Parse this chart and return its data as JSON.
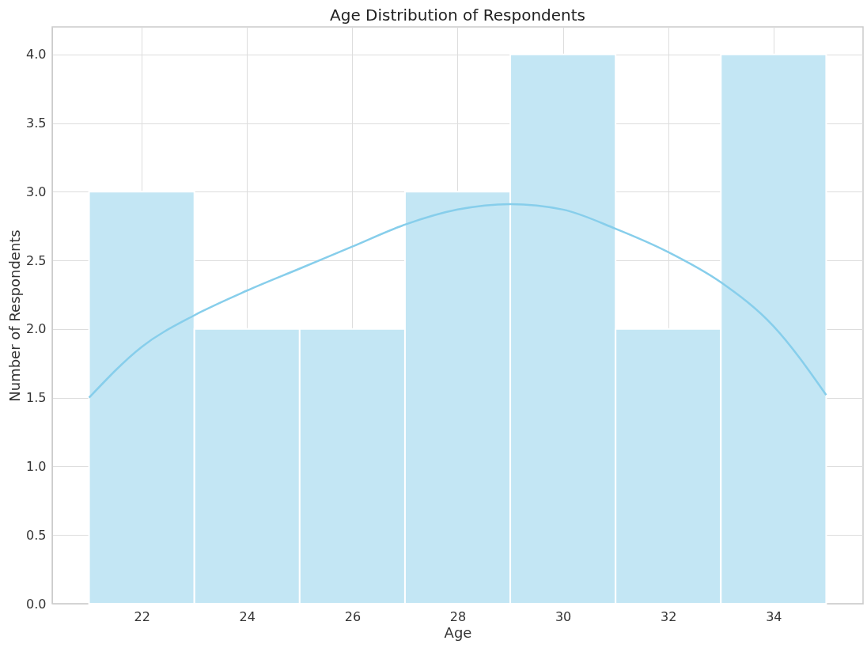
{
  "chart_data": {
    "type": "histogram",
    "title": "Age Distribution of Respondents",
    "xlabel": "Age",
    "ylabel": "Number of Respondents",
    "bins": [
      21,
      23,
      25,
      27,
      29,
      31,
      33,
      35
    ],
    "values": [
      3,
      2,
      2,
      3,
      4,
      2,
      4
    ],
    "color": "#c3e6f4",
    "series": [
      {
        "type": "line",
        "color": "#87ceeb",
        "x": [
          21,
          22,
          23,
          24,
          25,
          26,
          27,
          28,
          29,
          30,
          31,
          32,
          33,
          34,
          35
        ],
        "values": [
          1.5,
          1.87,
          2.1,
          2.28,
          2.44,
          2.6,
          2.76,
          2.87,
          2.91,
          2.87,
          2.73,
          2.56,
          2.34,
          2.02,
          1.52
        ]
      }
    ],
    "xlim": [
      20.3,
      35.7
    ],
    "xticks": [
      22,
      24,
      26,
      28,
      30,
      32,
      34
    ],
    "ylim": [
      0,
      4.2
    ],
    "yticks": [
      {
        "value": 0,
        "label": "0.0"
      },
      {
        "value": 0.5,
        "label": "0.5"
      },
      {
        "value": 1,
        "label": "1.0"
      },
      {
        "value": 1.5,
        "label": "1.5"
      },
      {
        "value": 2,
        "label": "2.0"
      },
      {
        "value": 2.5,
        "label": "2.5"
      },
      {
        "value": 3,
        "label": "3.0"
      },
      {
        "value": 3.5,
        "label": "3.5"
      },
      {
        "value": 4,
        "label": "4.0"
      }
    ],
    "grid": true
  }
}
